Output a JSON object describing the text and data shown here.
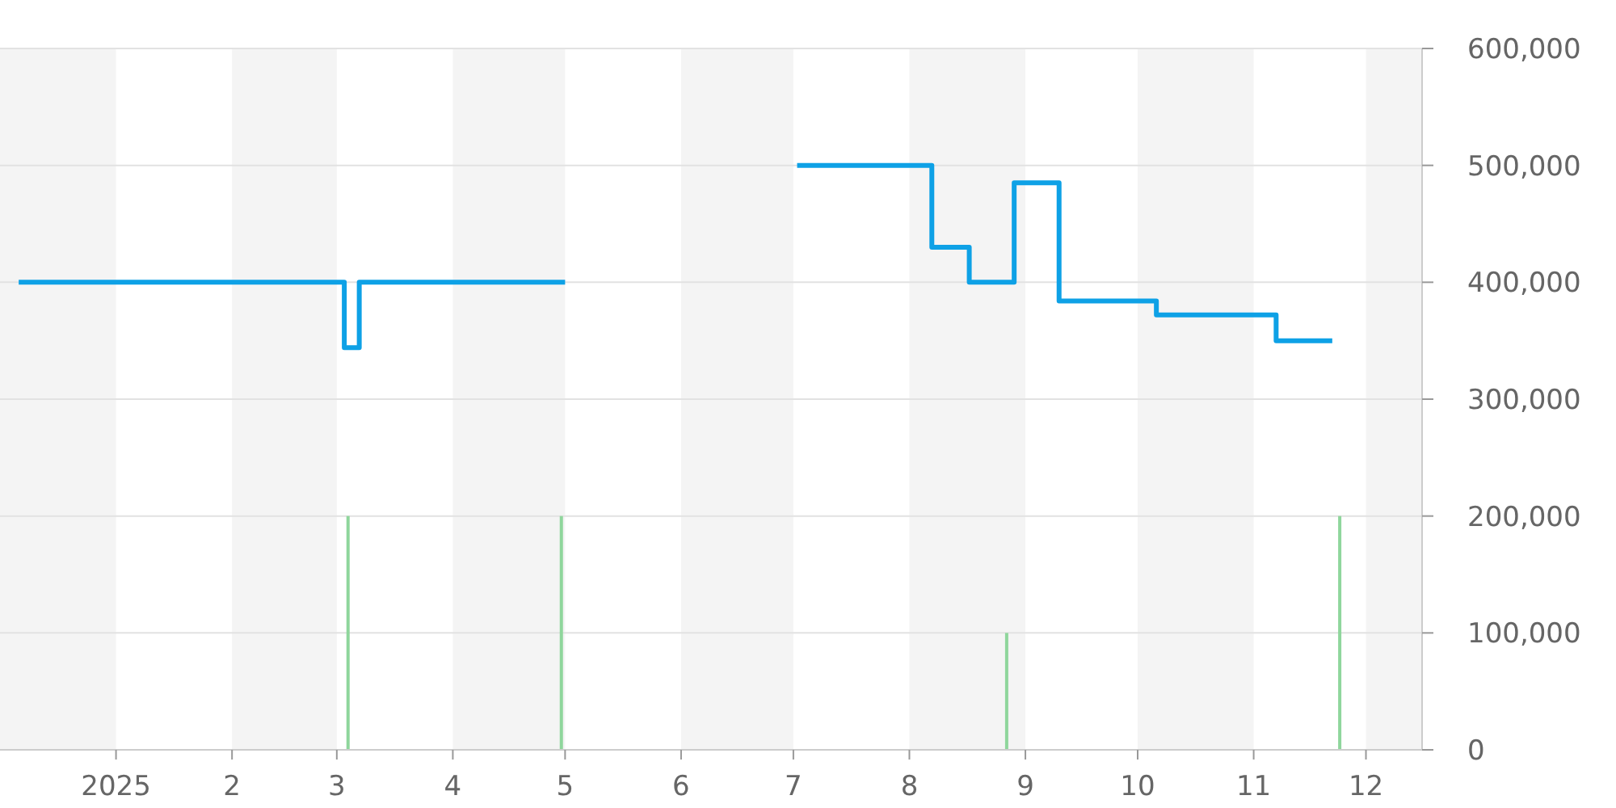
{
  "chart_data": {
    "type": "step",
    "series": [
      {
        "color": "#0ea1e6",
        "x": [
          "2024-12-06",
          "2025-03-03",
          "2025-03-07",
          "2025-05-01",
          "2025-06-01",
          "2025-07-02",
          "2025-08-07",
          "2025-08-17",
          "2025-08-29",
          "2025-09-10",
          "2025-10-06",
          "2025-11-07",
          "2025-11-22"
        ],
        "values": [
          400000,
          344000,
          400000,
          400000,
          null,
          500000,
          430000,
          400000,
          485000,
          384000,
          372000,
          350000,
          350000
        ]
      },
      {
        "type": "bar",
        "color": "#8fd69c",
        "x": [
          "2025-03-04",
          "2025-04-30",
          "2025-08-27",
          "2025-11-24"
        ],
        "values": [
          200000,
          200000,
          100000,
          200000
        ]
      }
    ],
    "xlim": [
      "2024-12-01",
      "2025-12-16"
    ],
    "xticks": [
      {
        "value": "2025-01-01",
        "label": "2025"
      },
      {
        "value": "2025-02-01",
        "label": "2"
      },
      {
        "value": "2025-03-01",
        "label": "3"
      },
      {
        "value": "2025-04-01",
        "label": "4"
      },
      {
        "value": "2025-05-01",
        "label": "5"
      },
      {
        "value": "2025-06-01",
        "label": "6"
      },
      {
        "value": "2025-07-01",
        "label": "7"
      },
      {
        "value": "2025-08-01",
        "label": "8"
      },
      {
        "value": "2025-09-01",
        "label": "9"
      },
      {
        "value": "2025-10-01",
        "label": "10"
      },
      {
        "value": "2025-11-01",
        "label": "11"
      },
      {
        "value": "2025-12-01",
        "label": "12"
      }
    ],
    "ylim": [
      0,
      600000
    ],
    "yticks": [
      0,
      {
        "value": 100000,
        "label": "100,000"
      },
      {
        "value": 200000,
        "label": "200,000"
      },
      {
        "value": 300000,
        "label": "300,000"
      },
      {
        "value": 400000,
        "label": "400,000"
      },
      {
        "value": 500000,
        "label": "500,000"
      },
      {
        "value": 600000,
        "label": "600,000"
      }
    ],
    "bands": [
      {
        "axis": "x",
        "from": "2024-12-01",
        "to": "2025-01-01",
        "color": "#f4f4f4"
      },
      {
        "axis": "x",
        "from": "2025-02-01",
        "to": "2025-03-01",
        "color": "#f4f4f4"
      },
      {
        "axis": "x",
        "from": "2025-04-01",
        "to": "2025-05-01",
        "color": "#f4f4f4"
      },
      {
        "axis": "x",
        "from": "2025-06-01",
        "to": "2025-07-01",
        "color": "#f4f4f4"
      },
      {
        "axis": "x",
        "from": "2025-08-01",
        "to": "2025-09-01",
        "color": "#f4f4f4"
      },
      {
        "axis": "x",
        "from": "2025-10-01",
        "to": "2025-11-01",
        "color": "#f4f4f4"
      },
      {
        "axis": "x",
        "from": "2025-12-01",
        "to": "2025-12-16",
        "color": "#f4f4f4"
      }
    ],
    "grid": "y"
  }
}
